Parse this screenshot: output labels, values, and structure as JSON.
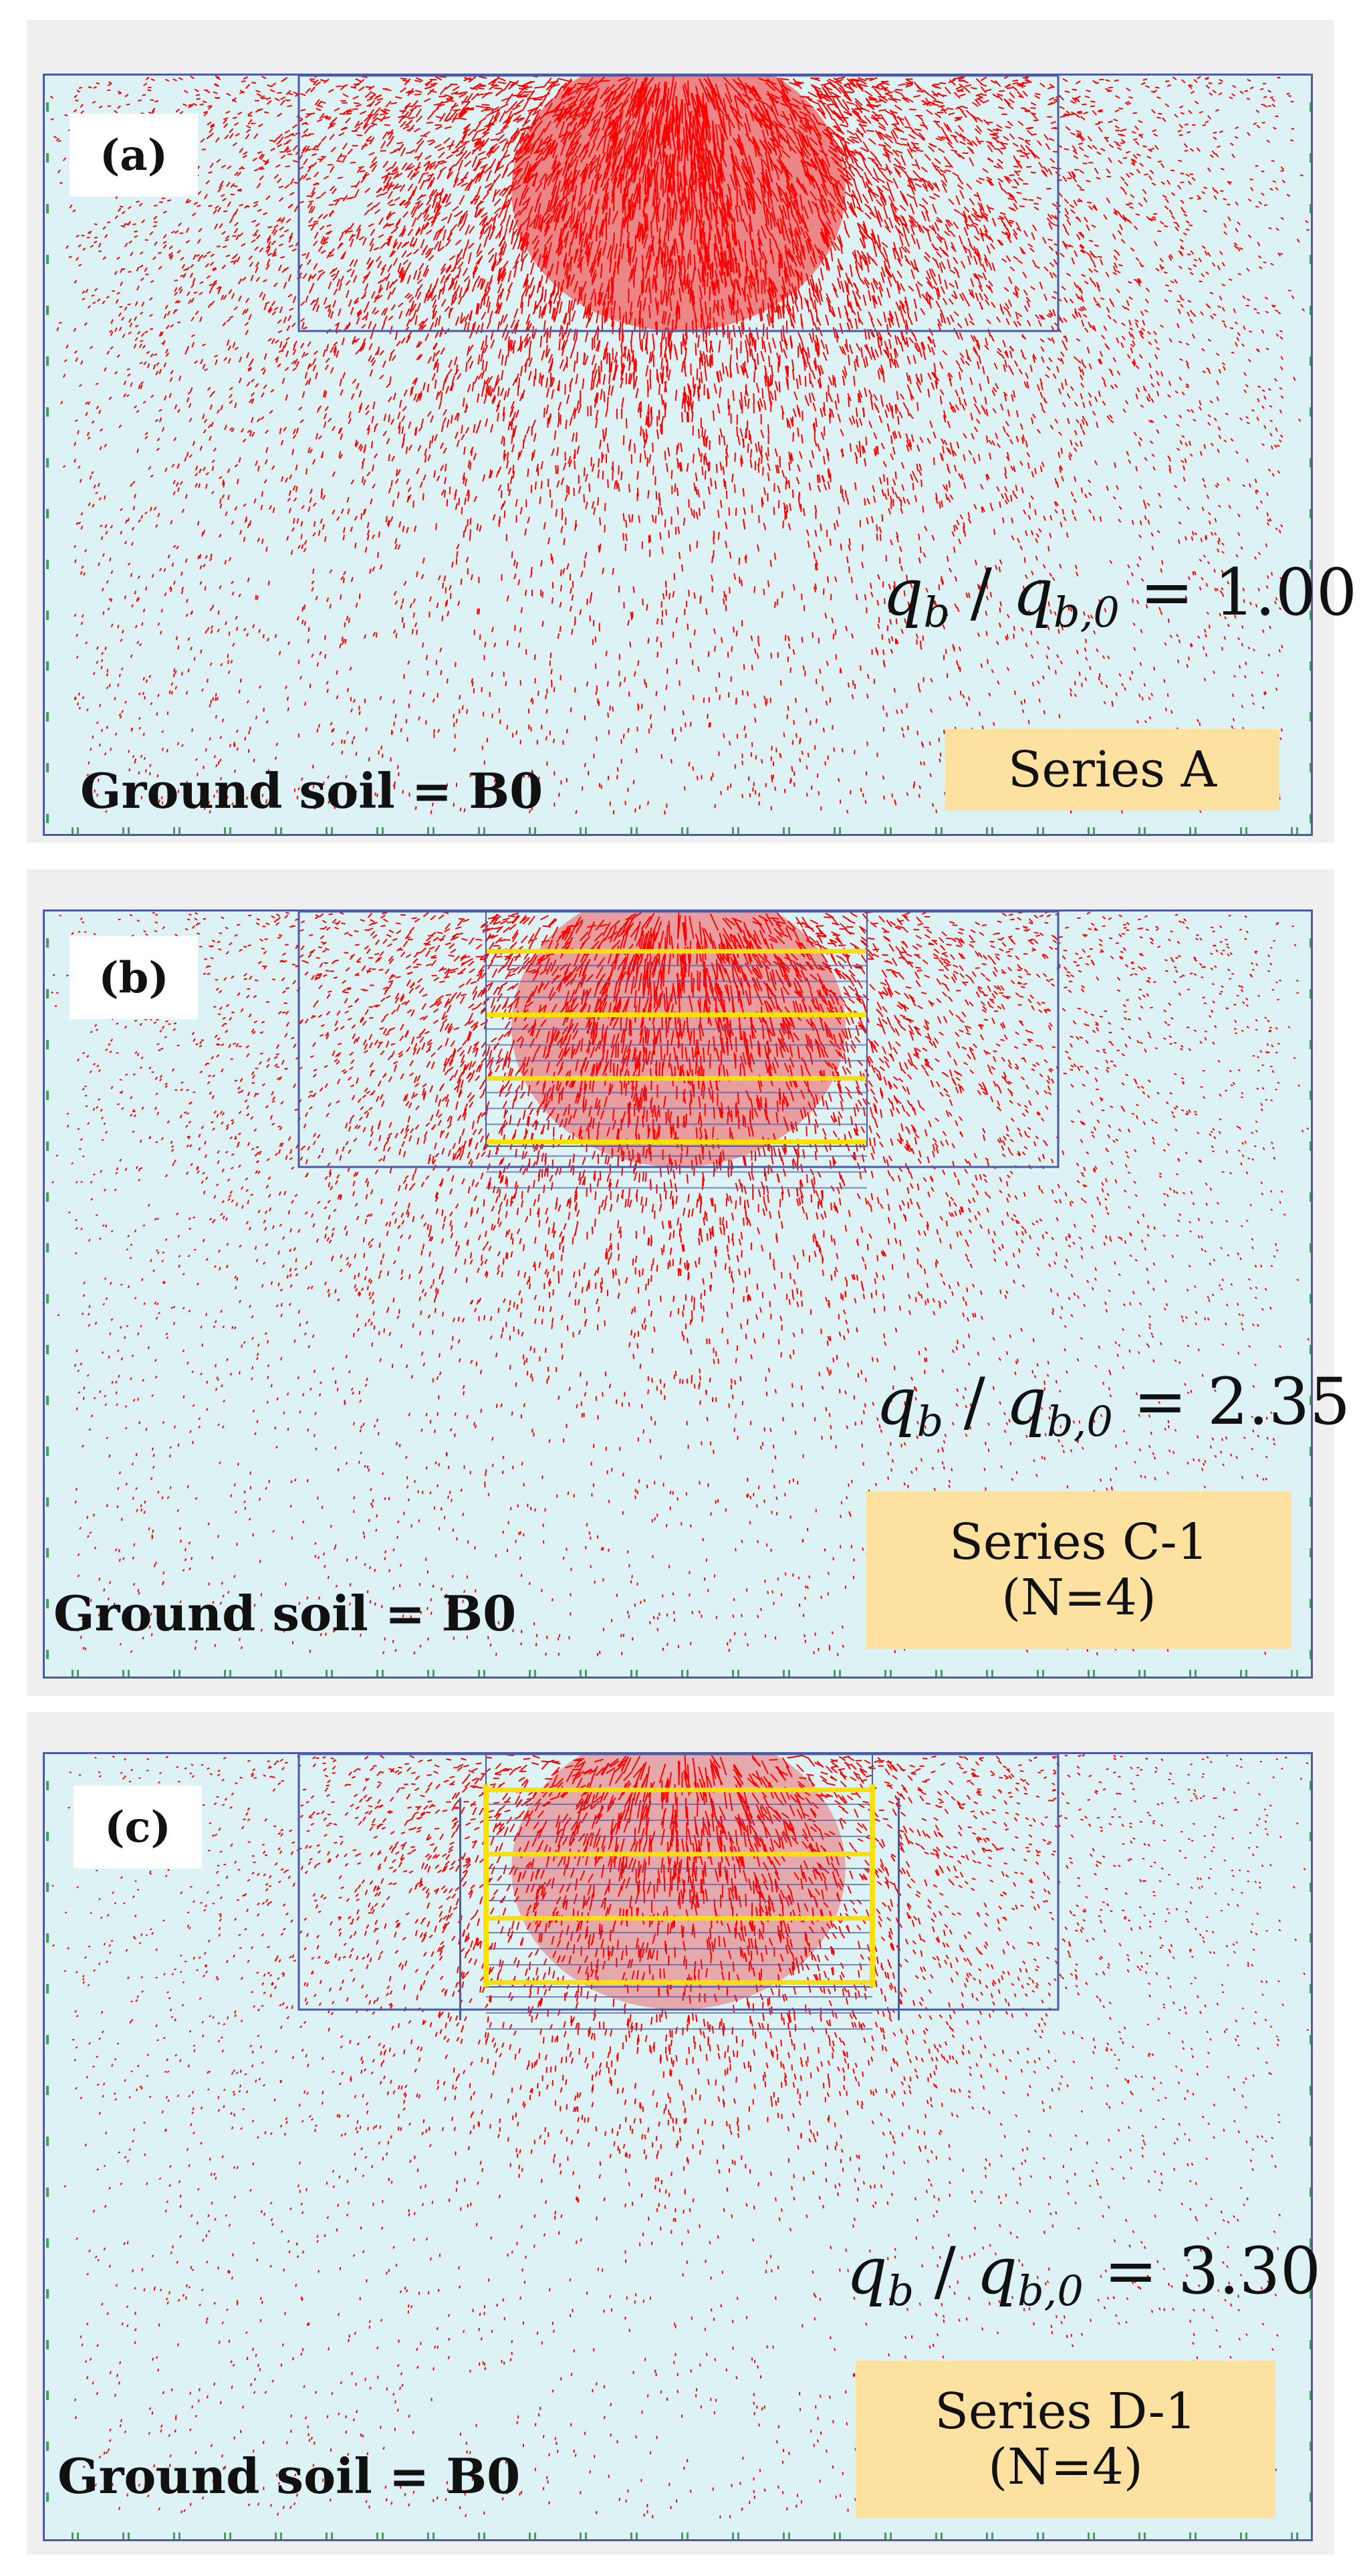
{
  "panels": [
    {
      "id": "a",
      "label": "(a)",
      "ratio": {
        "q": "q",
        "sub1": "b",
        "slash": " / ",
        "q2": "q",
        "sub2": "b,0",
        "eq": " = ",
        "value": "1.00"
      },
      "series": {
        "line1": "Series A",
        "line2": ""
      },
      "ground": "Ground soil = B0",
      "reinforcement_layers": 0,
      "confined": false
    },
    {
      "id": "b",
      "label": "(b)",
      "ratio": {
        "q": "q",
        "sub1": "b",
        "slash": " / ",
        "q2": "q",
        "sub2": "b,0",
        "eq": " = ",
        "value": "2.35"
      },
      "series": {
        "line1": "Series C-1",
        "line2": "(N=4)"
      },
      "ground": "Ground soil = B0",
      "reinforcement_layers": 4,
      "confined": false
    },
    {
      "id": "c",
      "label": "(c)",
      "ratio": {
        "q": "q",
        "sub1": "b",
        "slash": " / ",
        "q2": "q",
        "sub2": "b,0",
        "eq": " = ",
        "value": "3.30"
      },
      "series": {
        "line1": "Series D-1",
        "line2": "(N=4)"
      },
      "ground": "Ground soil = B0",
      "reinforcement_layers": 4,
      "confined": true
    }
  ],
  "colors": {
    "background": "#efefef",
    "soil": "#dcf2f5",
    "boundary": "#4a5aa6",
    "vectors": "#ff0000",
    "reinforcement": "#ffe000",
    "fixity": "#3aa84a",
    "series_box": "#fde1a0"
  }
}
